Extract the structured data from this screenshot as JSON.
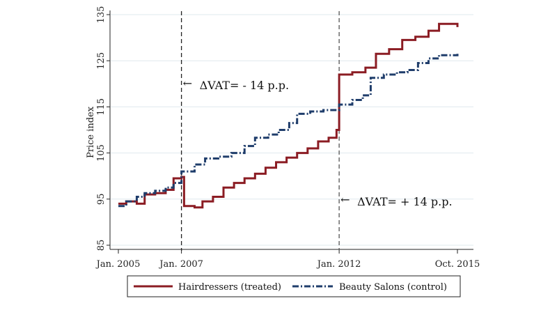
{
  "chart_data": {
    "type": "line",
    "title": "",
    "xlabel": "",
    "ylabel": "Price index",
    "xlim": [
      "2005-01",
      "2015-10"
    ],
    "ylim": [
      85,
      135
    ],
    "grid": true,
    "legend_position": "bottom",
    "x_ticks": [
      "Jan. 2005",
      "Jan. 2007",
      "Jan. 2012",
      "Oct. 2015"
    ],
    "y_ticks": [
      85,
      95,
      105,
      115,
      125,
      135
    ],
    "reference_lines": [
      {
        "x": "2007-01",
        "label": "ΔVAT= - 14 p.p.",
        "arrow": "←"
      },
      {
        "x": "2012-01",
        "label": "ΔVAT= + 14 p.p.",
        "arrow": "←"
      }
    ],
    "colors": {
      "treated": "#8b1c23",
      "control": "#1f3d6b",
      "grid": "#dfe8ee"
    },
    "series": [
      {
        "name": "Hairdressers (treated)",
        "style": "solid",
        "points": [
          [
            "2005-01",
            94.0
          ],
          [
            "2005-04",
            94.5
          ],
          [
            "2005-08",
            94.0
          ],
          [
            "2005-11",
            96.0
          ],
          [
            "2006-03",
            96.3
          ],
          [
            "2006-07",
            97.0
          ],
          [
            "2006-10",
            99.5
          ],
          [
            "2007-01",
            99.8
          ],
          [
            "2007-02",
            93.5
          ],
          [
            "2007-06",
            93.2
          ],
          [
            "2007-09",
            94.5
          ],
          [
            "2008-01",
            95.5
          ],
          [
            "2008-05",
            97.5
          ],
          [
            "2008-09",
            98.5
          ],
          [
            "2009-01",
            99.5
          ],
          [
            "2009-05",
            100.5
          ],
          [
            "2009-09",
            101.8
          ],
          [
            "2010-01",
            103.0
          ],
          [
            "2010-05",
            104.0
          ],
          [
            "2010-09",
            105.0
          ],
          [
            "2011-01",
            106.0
          ],
          [
            "2011-05",
            107.5
          ],
          [
            "2011-09",
            108.3
          ],
          [
            "2011-12",
            110.0
          ],
          [
            "2012-01",
            122.0
          ],
          [
            "2012-06",
            122.5
          ],
          [
            "2012-11",
            123.5
          ],
          [
            "2013-03",
            126.5
          ],
          [
            "2013-08",
            127.5
          ],
          [
            "2014-01",
            129.5
          ],
          [
            "2014-06",
            130.2
          ],
          [
            "2014-11",
            131.5
          ],
          [
            "2015-03",
            133.0
          ],
          [
            "2015-07",
            133.0
          ],
          [
            "2015-10",
            132.3
          ]
        ]
      },
      {
        "name": "Beauty Salons (control)",
        "style": "dash-dot",
        "points": [
          [
            "2005-01",
            93.5
          ],
          [
            "2005-04",
            94.5
          ],
          [
            "2005-08",
            95.5
          ],
          [
            "2005-11",
            96.3
          ],
          [
            "2006-03",
            96.8
          ],
          [
            "2006-07",
            97.5
          ],
          [
            "2006-10",
            98.5
          ],
          [
            "2007-01",
            101.0
          ],
          [
            "2007-06",
            102.5
          ],
          [
            "2007-10",
            103.8
          ],
          [
            "2008-03",
            104.2
          ],
          [
            "2008-08",
            105.0
          ],
          [
            "2009-01",
            106.5
          ],
          [
            "2009-05",
            108.3
          ],
          [
            "2009-10",
            109.0
          ],
          [
            "2010-02",
            110.0
          ],
          [
            "2010-06",
            111.5
          ],
          [
            "2010-09",
            113.5
          ],
          [
            "2011-02",
            114.0
          ],
          [
            "2011-07",
            114.3
          ],
          [
            "2012-01",
            115.5
          ],
          [
            "2012-06",
            116.5
          ],
          [
            "2012-10",
            117.5
          ],
          [
            "2013-01",
            121.3
          ],
          [
            "2013-06",
            122.0
          ],
          [
            "2013-11",
            122.5
          ],
          [
            "2014-03",
            123.0
          ],
          [
            "2014-07",
            124.5
          ],
          [
            "2014-11",
            125.5
          ],
          [
            "2015-03",
            126.2
          ],
          [
            "2015-10",
            126.5
          ]
        ]
      }
    ]
  }
}
